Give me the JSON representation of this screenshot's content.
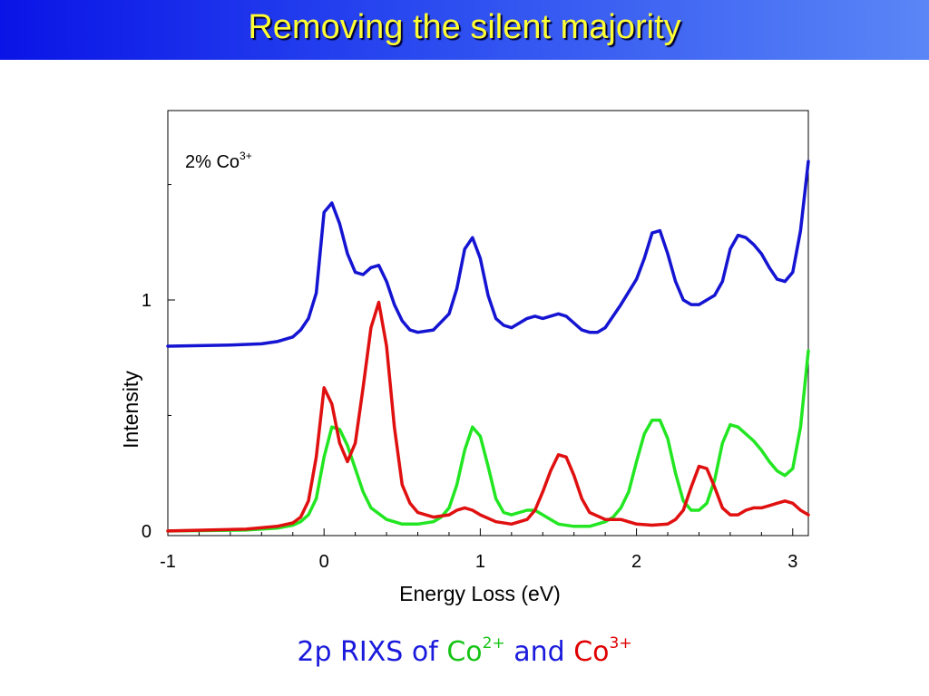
{
  "slide": {
    "title": "Removing the silent majority",
    "caption": {
      "prefix": "2p RIXS of ",
      "co2_base": "Co",
      "co2_sup": "2+",
      "middle": " and ",
      "co3_base": "Co",
      "co3_sup": "3+"
    }
  },
  "chart_data": {
    "type": "line",
    "title": "",
    "annotation": {
      "base": "2% Co",
      "sup": "3+"
    },
    "xlabel": "Energy Loss (eV)",
    "ylabel": "Intensity",
    "xlim": [
      -1,
      3.1
    ],
    "ylim": [
      -0.02,
      1.82
    ],
    "xticks": [
      -1,
      0,
      1,
      2,
      3
    ],
    "xtick_labels": [
      "-1",
      "0",
      "1",
      "2",
      "3"
    ],
    "yticks": [
      0,
      1
    ],
    "ytick_labels": [
      "0",
      "1"
    ],
    "yminor_ticks": [
      0.5,
      1.5
    ],
    "grid": false,
    "legend": "none",
    "series": [
      {
        "color": "#1414d2",
        "x": [
          -1,
          -0.6,
          -0.4,
          -0.3,
          -0.2,
          -0.15,
          -0.1,
          -0.05,
          0,
          0.05,
          0.1,
          0.15,
          0.2,
          0.25,
          0.3,
          0.35,
          0.4,
          0.45,
          0.5,
          0.55,
          0.6,
          0.7,
          0.8,
          0.85,
          0.9,
          0.95,
          1.0,
          1.05,
          1.1,
          1.15,
          1.2,
          1.25,
          1.3,
          1.35,
          1.4,
          1.5,
          1.55,
          1.6,
          1.65,
          1.7,
          1.75,
          1.8,
          1.9,
          2.0,
          2.05,
          2.1,
          2.15,
          2.2,
          2.25,
          2.3,
          2.35,
          2.4,
          2.5,
          2.55,
          2.6,
          2.65,
          2.7,
          2.75,
          2.8,
          2.85,
          2.9,
          2.95,
          3.0,
          3.05,
          3.1
        ],
        "y": [
          0.8,
          0.805,
          0.81,
          0.82,
          0.84,
          0.87,
          0.92,
          1.03,
          1.38,
          1.42,
          1.33,
          1.2,
          1.12,
          1.11,
          1.14,
          1.15,
          1.08,
          0.98,
          0.91,
          0.87,
          0.86,
          0.87,
          0.94,
          1.05,
          1.22,
          1.27,
          1.18,
          1.02,
          0.92,
          0.89,
          0.88,
          0.9,
          0.92,
          0.93,
          0.92,
          0.94,
          0.93,
          0.9,
          0.87,
          0.86,
          0.86,
          0.88,
          0.98,
          1.09,
          1.18,
          1.29,
          1.3,
          1.2,
          1.08,
          1.0,
          0.98,
          0.98,
          1.02,
          1.08,
          1.22,
          1.28,
          1.27,
          1.24,
          1.2,
          1.14,
          1.09,
          1.08,
          1.12,
          1.3,
          1.6
        ]
      },
      {
        "color": "#22e622",
        "x": [
          -1,
          -0.5,
          -0.3,
          -0.2,
          -0.15,
          -0.1,
          -0.05,
          0,
          0.05,
          0.1,
          0.15,
          0.2,
          0.25,
          0.3,
          0.4,
          0.5,
          0.6,
          0.7,
          0.75,
          0.8,
          0.85,
          0.9,
          0.95,
          1.0,
          1.05,
          1.1,
          1.15,
          1.2,
          1.25,
          1.3,
          1.35,
          1.4,
          1.45,
          1.5,
          1.6,
          1.7,
          1.8,
          1.85,
          1.9,
          1.95,
          2.0,
          2.05,
          2.1,
          2.15,
          2.2,
          2.25,
          2.3,
          2.35,
          2.4,
          2.45,
          2.5,
          2.55,
          2.6,
          2.65,
          2.7,
          2.75,
          2.8,
          2.85,
          2.9,
          2.95,
          3.0,
          3.05,
          3.1
        ],
        "y": [
          0.0,
          0.004,
          0.012,
          0.025,
          0.04,
          0.07,
          0.14,
          0.32,
          0.45,
          0.44,
          0.37,
          0.27,
          0.17,
          0.1,
          0.05,
          0.03,
          0.03,
          0.04,
          0.06,
          0.1,
          0.2,
          0.35,
          0.45,
          0.41,
          0.28,
          0.14,
          0.08,
          0.07,
          0.08,
          0.09,
          0.09,
          0.07,
          0.05,
          0.03,
          0.02,
          0.02,
          0.04,
          0.06,
          0.1,
          0.17,
          0.3,
          0.42,
          0.48,
          0.48,
          0.4,
          0.25,
          0.13,
          0.09,
          0.09,
          0.12,
          0.22,
          0.38,
          0.46,
          0.45,
          0.42,
          0.39,
          0.35,
          0.3,
          0.26,
          0.24,
          0.27,
          0.45,
          0.78
        ]
      },
      {
        "color": "#e01010",
        "x": [
          -1,
          -0.5,
          -0.3,
          -0.2,
          -0.15,
          -0.1,
          -0.05,
          0,
          0.05,
          0.1,
          0.15,
          0.2,
          0.25,
          0.3,
          0.35,
          0.4,
          0.45,
          0.5,
          0.55,
          0.6,
          0.7,
          0.8,
          0.85,
          0.9,
          0.95,
          1.0,
          1.1,
          1.2,
          1.3,
          1.35,
          1.4,
          1.45,
          1.5,
          1.55,
          1.6,
          1.65,
          1.7,
          1.8,
          1.9,
          2.0,
          2.1,
          2.2,
          2.25,
          2.3,
          2.35,
          2.4,
          2.45,
          2.5,
          2.55,
          2.6,
          2.65,
          2.7,
          2.75,
          2.8,
          2.85,
          2.9,
          2.95,
          3.0,
          3.05,
          3.1
        ],
        "y": [
          0.0,
          0.008,
          0.02,
          0.035,
          0.06,
          0.13,
          0.32,
          0.62,
          0.55,
          0.38,
          0.3,
          0.38,
          0.62,
          0.88,
          0.99,
          0.8,
          0.45,
          0.2,
          0.12,
          0.08,
          0.06,
          0.07,
          0.09,
          0.1,
          0.09,
          0.07,
          0.04,
          0.03,
          0.05,
          0.09,
          0.17,
          0.26,
          0.33,
          0.32,
          0.24,
          0.14,
          0.08,
          0.05,
          0.05,
          0.03,
          0.025,
          0.03,
          0.05,
          0.09,
          0.19,
          0.28,
          0.27,
          0.19,
          0.1,
          0.07,
          0.07,
          0.09,
          0.1,
          0.1,
          0.11,
          0.12,
          0.13,
          0.12,
          0.09,
          0.07
        ]
      }
    ]
  }
}
